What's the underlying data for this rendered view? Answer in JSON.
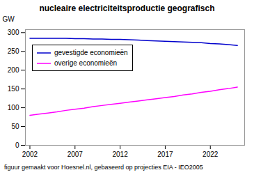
{
  "chart_data": {
    "type": "line",
    "title": "nucleaire electriciteitsproductie geografisch",
    "ylabel": "GW",
    "footnote": "figuur gemaakt voor Hoesnel.nl, gebaseerd op projecties EIA - IEO2005",
    "x": [
      2002,
      2003,
      2004,
      2005,
      2006,
      2007,
      2008,
      2009,
      2010,
      2011,
      2012,
      2013,
      2014,
      2015,
      2016,
      2017,
      2018,
      2019,
      2020,
      2021,
      2022,
      2023,
      2024,
      2025
    ],
    "series": [
      {
        "name": "gevestigde economieën",
        "color": "#0000CC",
        "values": [
          285,
          285,
          285,
          285,
          285,
          284,
          284,
          283,
          283,
          282,
          282,
          281,
          280,
          279,
          278,
          277,
          276,
          275,
          274,
          273,
          271,
          270,
          268,
          266
        ]
      },
      {
        "name": "overige economieën",
        "color": "#FF00FF",
        "values": [
          80,
          83,
          86,
          89,
          93,
          96,
          99,
          103,
          106,
          109,
          112,
          115,
          118,
          121,
          124,
          127,
          130,
          134,
          137,
          141,
          144,
          148,
          151,
          155
        ]
      }
    ],
    "xlim": [
      2001.5,
      2025.8
    ],
    "ylim": [
      0,
      308
    ],
    "xticks": [
      2002,
      2007,
      2012,
      2017,
      2022
    ],
    "yticks": [
      0,
      50,
      100,
      150,
      200,
      250,
      300
    ],
    "grid": false,
    "legend": "upper left"
  }
}
